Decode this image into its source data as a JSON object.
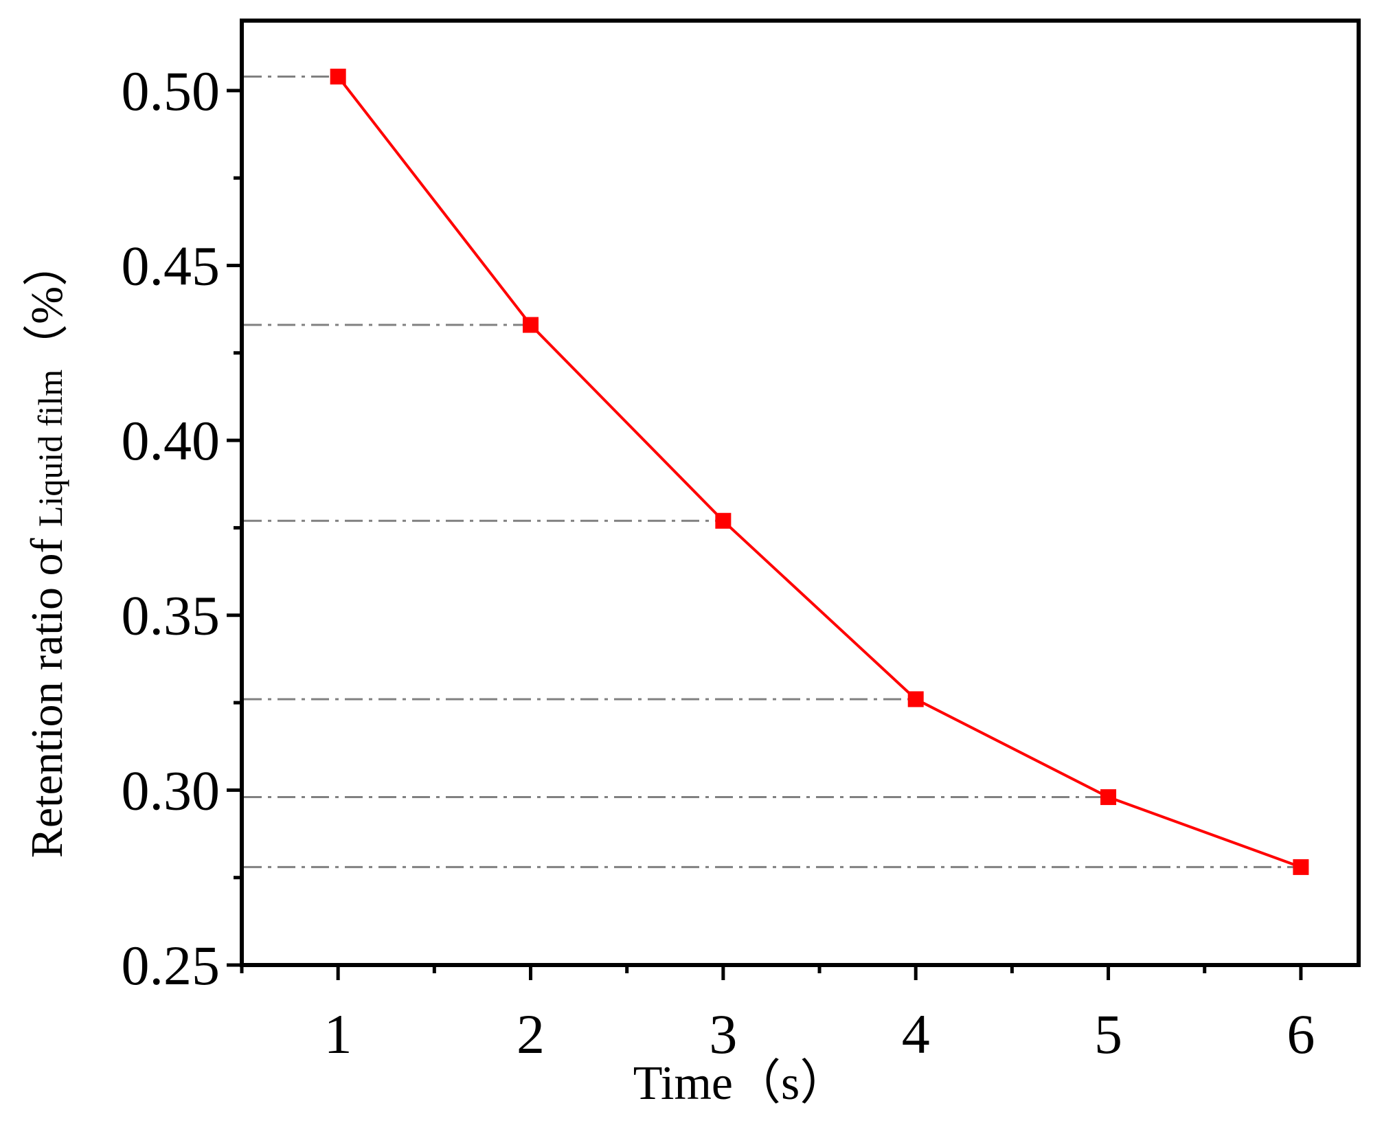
{
  "chart_data": {
    "type": "line",
    "title": "",
    "xlabel": "Time（s）",
    "ylabel": {
      "prefix": "Retention ratio of ",
      "emphasis": "Liquid film",
      "suffix": "（%）"
    },
    "x": [
      1,
      2,
      3,
      4,
      5,
      6
    ],
    "series": [
      {
        "values": [
          0.504,
          0.433,
          0.377,
          0.326,
          0.298,
          0.278
        ],
        "color": "#ff0000",
        "marker": "square"
      }
    ],
    "xlim": [
      0.5,
      6.3
    ],
    "ylim": [
      0.25,
      0.52
    ],
    "xticks": [
      1,
      2,
      3,
      4,
      5,
      6
    ],
    "xtick_labels": [
      "1",
      "2",
      "3",
      "4",
      "5",
      "6"
    ],
    "xminor": [
      0.5,
      1.5,
      2.5,
      3.5,
      4.5,
      5.5
    ],
    "yticks": [
      0.25,
      0.3,
      0.35,
      0.4,
      0.45,
      0.5
    ],
    "ytick_labels": [
      "0.25",
      "0.30",
      "0.35",
      "0.40",
      "0.45",
      "0.50"
    ],
    "yminor": [
      0.275,
      0.325,
      0.375,
      0.425,
      0.475
    ],
    "reference_lines": "dash-dot gray horizontal line from the y-axis to each data point",
    "reference_color": "#808080",
    "grid": false,
    "legend": "none"
  }
}
